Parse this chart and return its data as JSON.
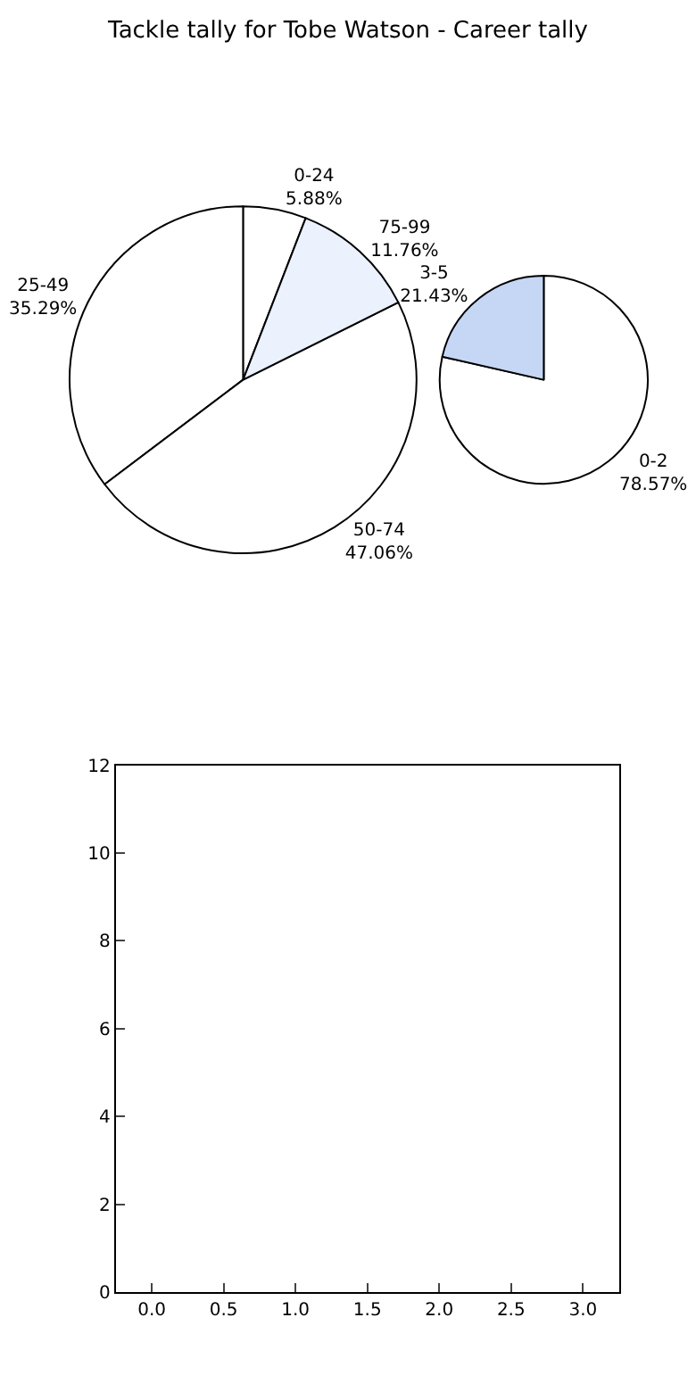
{
  "chart_data": [
    {
      "type": "pie",
      "title": "Tackle tally for Tobe Watson - Career tally",
      "categories": [
        "0-24",
        "25-49",
        "50-74",
        "75-99"
      ],
      "values": [
        5.88,
        35.29,
        47.06,
        11.76
      ],
      "value_labels": [
        "5.88%",
        "35.29%",
        "47.06%",
        "11.76%"
      ],
      "colors": [
        "#ffffff",
        "#ffffff",
        "#ffffff",
        "#ebf1fd"
      ]
    },
    {
      "type": "pie",
      "categories": [
        "0-2",
        "3-5"
      ],
      "values": [
        78.57,
        21.43
      ],
      "value_labels": [
        "78.57%",
        "21.43%"
      ],
      "colors": [
        "#ffffff",
        "#c6d7f5"
      ]
    },
    {
      "type": "scatter",
      "xlim": [
        -0.25,
        3.25
      ],
      "xticks": [
        {
          "value": 0,
          "label": "0.0"
        },
        {
          "value": 0.5,
          "label": "0.5"
        },
        {
          "value": 1,
          "label": "1.0"
        },
        {
          "value": 1.5,
          "label": "1.5"
        },
        {
          "value": 2,
          "label": "2.0"
        },
        {
          "value": 2.5,
          "label": "2.5"
        },
        {
          "value": 3,
          "label": "3.0"
        }
      ],
      "ylim": [
        0,
        12
      ],
      "yticks": [
        0,
        2,
        4,
        6,
        8,
        10,
        12
      ]
    }
  ]
}
